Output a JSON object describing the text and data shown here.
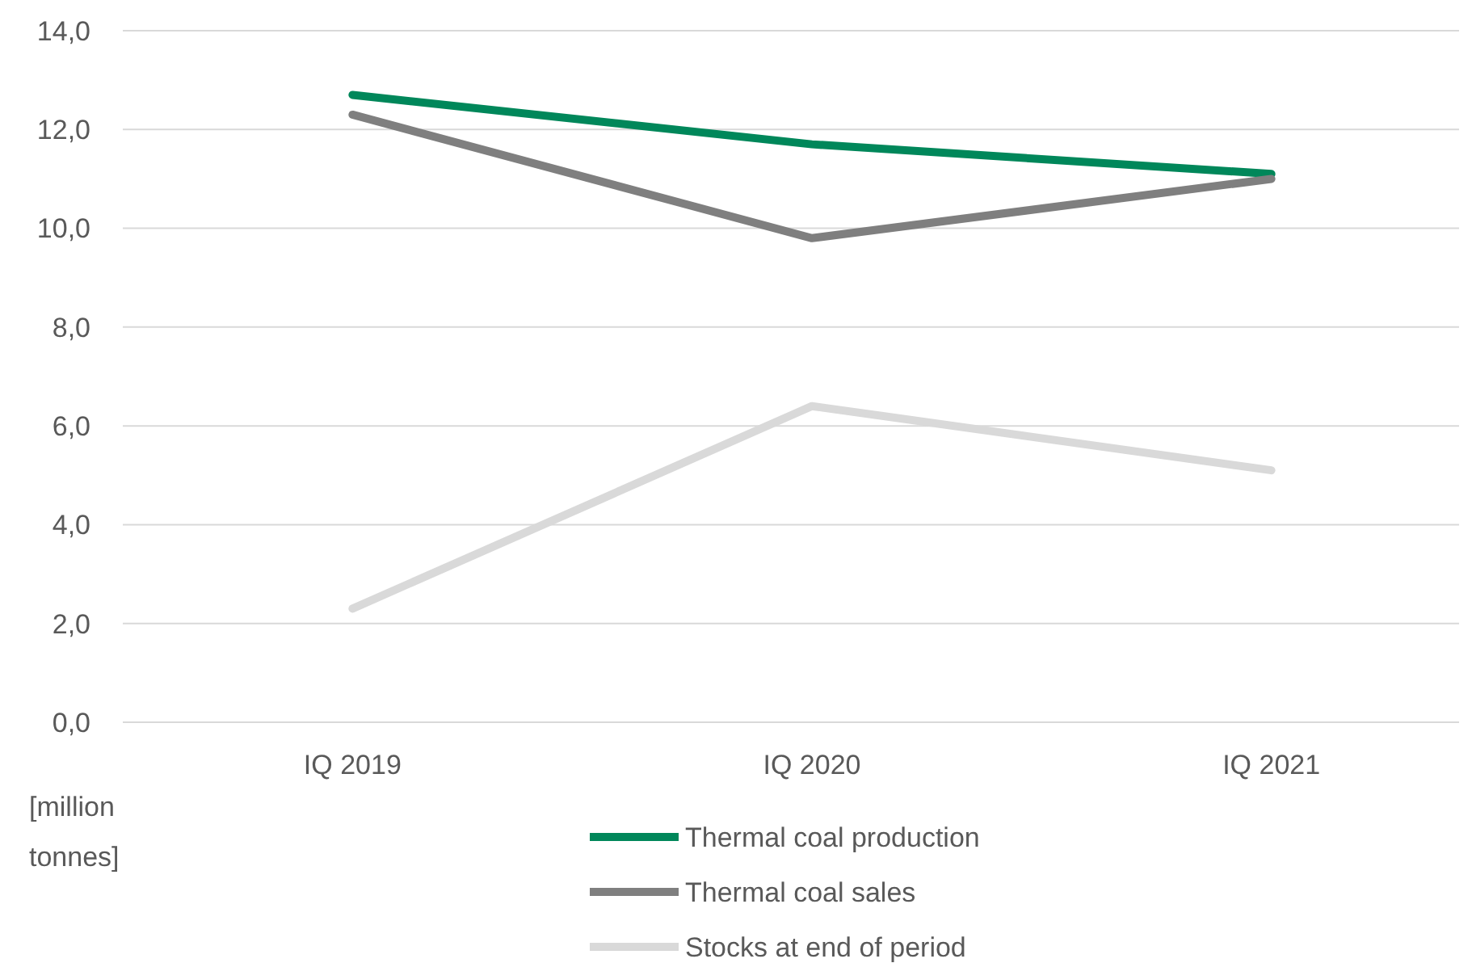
{
  "chart_data": {
    "type": "line",
    "ylabel": "[million tonnes]",
    "categories": [
      "IQ 2019",
      "IQ 2020",
      "IQ 2021"
    ],
    "series": [
      {
        "name": "Thermal coal production",
        "color": "#00875a",
        "values": [
          12.7,
          11.7,
          11.1
        ]
      },
      {
        "name": "Thermal coal sales",
        "color": "#7f7f7f",
        "values": [
          12.3,
          9.8,
          11.0
        ]
      },
      {
        "name": "Stocks at end of period",
        "color": "#d9d9d9",
        "values": [
          2.3,
          6.4,
          5.1
        ]
      }
    ],
    "ylim": [
      0,
      14
    ],
    "yticks": [
      {
        "value": 0,
        "label": "0,0"
      },
      {
        "value": 2,
        "label": "2,0"
      },
      {
        "value": 4,
        "label": "4,0"
      },
      {
        "value": 6,
        "label": "6,0"
      },
      {
        "value": 8,
        "label": "8,0"
      },
      {
        "value": 10,
        "label": "10,0"
      },
      {
        "value": 12,
        "label": "12,0"
      },
      {
        "value": 14,
        "label": "14,0"
      }
    ],
    "grid": "y",
    "legend": "bottom",
    "marker": "none",
    "line_style": "solid"
  }
}
